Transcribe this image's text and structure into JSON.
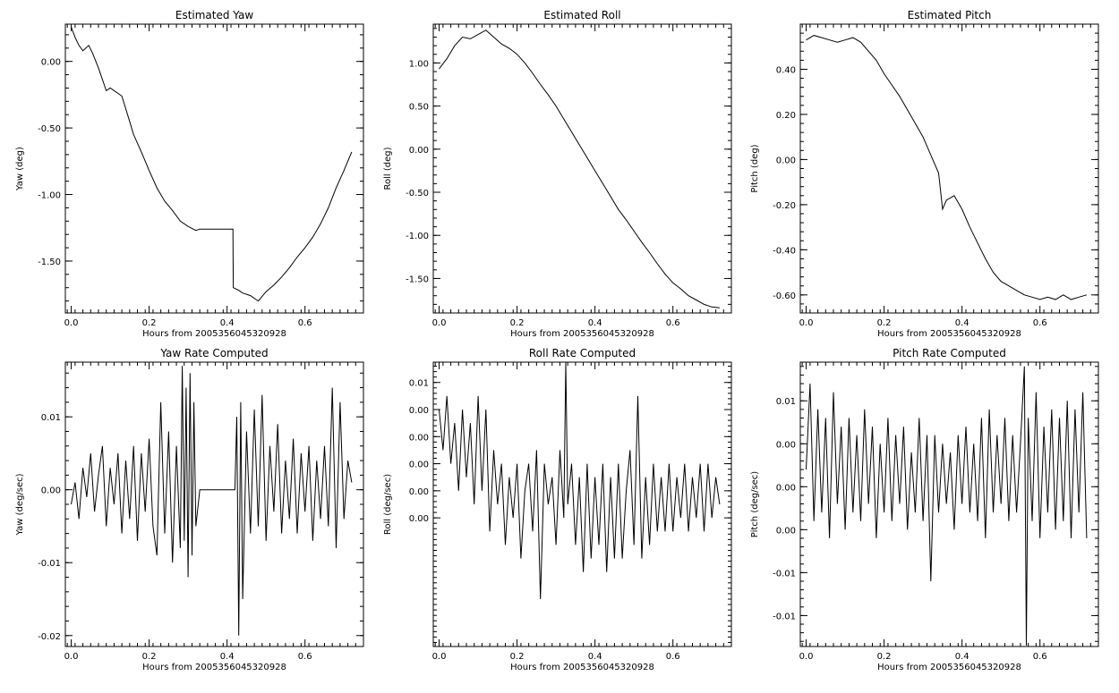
{
  "chart_data": [
    {
      "type": "line",
      "title": "Estimated Yaw",
      "xlabel": "Hours from 2005356045320928",
      "ylabel": "Yaw (deg)",
      "xlim": [
        -0.015,
        0.75
      ],
      "ylim": [
        -1.89,
        0.28
      ],
      "xticks": [
        0.0,
        0.2,
        0.4,
        0.6
      ],
      "xtick_labels": [
        "0.0",
        "0.2",
        "0.4",
        "0.6"
      ],
      "yticks": [
        0.0,
        -0.5,
        -1.0,
        -1.5
      ],
      "ytick_labels": [
        "0.00",
        "-0.50",
        "-1.00",
        "-1.50"
      ],
      "series": [
        {
          "x": [
            0.0,
            0.01,
            0.02,
            0.03,
            0.045,
            0.055,
            0.07,
            0.09,
            0.1,
            0.12,
            0.13,
            0.15,
            0.16,
            0.18,
            0.2,
            0.22,
            0.24,
            0.26,
            0.28,
            0.3,
            0.32,
            0.33,
            0.36,
            0.39,
            0.415,
            0.416,
            0.43,
            0.44,
            0.46,
            0.48,
            0.5,
            0.52,
            0.54,
            0.56,
            0.58,
            0.6,
            0.62,
            0.64,
            0.66,
            0.68,
            0.7,
            0.72
          ],
          "y": [
            0.26,
            0.18,
            0.12,
            0.08,
            0.12,
            0.06,
            -0.05,
            -0.22,
            -0.2,
            -0.24,
            -0.26,
            -0.45,
            -0.55,
            -0.68,
            -0.82,
            -0.95,
            -1.05,
            -1.12,
            -1.2,
            -1.24,
            -1.27,
            -1.26,
            -1.26,
            -1.26,
            -1.26,
            -1.7,
            -1.72,
            -1.74,
            -1.76,
            -1.8,
            -1.73,
            -1.68,
            -1.62,
            -1.55,
            -1.47,
            -1.4,
            -1.32,
            -1.22,
            -1.1,
            -0.95,
            -0.82,
            -0.68
          ]
        }
      ]
    },
    {
      "type": "line",
      "title": "Estimated Roll",
      "xlabel": "Hours from 2005356045320928",
      "ylabel": "Roll (deg)",
      "xlim": [
        -0.015,
        0.75
      ],
      "ylim": [
        -1.9,
        1.45
      ],
      "xticks": [
        0.0,
        0.2,
        0.4,
        0.6
      ],
      "xtick_labels": [
        "0.0",
        "0.2",
        "0.4",
        "0.6"
      ],
      "yticks": [
        1.0,
        0.5,
        0.0,
        -0.5,
        -1.0,
        -1.5
      ],
      "ytick_labels": [
        "1.00",
        "0.50",
        "0.00",
        "-0.50",
        "-1.00",
        "-1.50"
      ],
      "series": [
        {
          "x": [
            0.0,
            0.02,
            0.04,
            0.06,
            0.08,
            0.1,
            0.12,
            0.14,
            0.16,
            0.18,
            0.2,
            0.22,
            0.24,
            0.26,
            0.28,
            0.3,
            0.32,
            0.34,
            0.36,
            0.38,
            0.4,
            0.42,
            0.44,
            0.46,
            0.48,
            0.5,
            0.52,
            0.54,
            0.56,
            0.58,
            0.6,
            0.62,
            0.64,
            0.66,
            0.68,
            0.7,
            0.72
          ],
          "y": [
            0.93,
            1.05,
            1.2,
            1.3,
            1.28,
            1.33,
            1.38,
            1.3,
            1.22,
            1.17,
            1.1,
            1.0,
            0.88,
            0.75,
            0.63,
            0.5,
            0.35,
            0.2,
            0.05,
            -0.1,
            -0.25,
            -0.4,
            -0.55,
            -0.7,
            -0.82,
            -0.95,
            -1.08,
            -1.2,
            -1.33,
            -1.45,
            -1.55,
            -1.62,
            -1.7,
            -1.75,
            -1.8,
            -1.83,
            -1.84
          ]
        }
      ]
    },
    {
      "type": "line",
      "title": "Estimated Pitch",
      "xlabel": "Hours from 2005356045320928",
      "ylabel": "Pitch (deg)",
      "xlim": [
        -0.015,
        0.75
      ],
      "ylim": [
        -0.68,
        0.6
      ],
      "xticks": [
        0.0,
        0.2,
        0.4,
        0.6
      ],
      "xtick_labels": [
        "0.0",
        "0.2",
        "0.4",
        "0.6"
      ],
      "yticks": [
        0.4,
        0.2,
        0.0,
        -0.2,
        -0.4,
        -0.6
      ],
      "ytick_labels": [
        "0.40",
        "0.20",
        "0.00",
        "-0.20",
        "-0.40",
        "-0.60"
      ],
      "series": [
        {
          "x": [
            0.0,
            0.02,
            0.04,
            0.06,
            0.08,
            0.1,
            0.12,
            0.14,
            0.16,
            0.18,
            0.2,
            0.22,
            0.24,
            0.26,
            0.28,
            0.3,
            0.32,
            0.34,
            0.35,
            0.36,
            0.38,
            0.4,
            0.42,
            0.44,
            0.46,
            0.48,
            0.5,
            0.52,
            0.54,
            0.56,
            0.58,
            0.6,
            0.62,
            0.64,
            0.66,
            0.68,
            0.7,
            0.72
          ],
          "y": [
            0.53,
            0.55,
            0.54,
            0.53,
            0.52,
            0.53,
            0.54,
            0.52,
            0.48,
            0.44,
            0.38,
            0.33,
            0.28,
            0.22,
            0.16,
            0.1,
            0.02,
            -0.06,
            -0.22,
            -0.18,
            -0.16,
            -0.22,
            -0.3,
            -0.37,
            -0.44,
            -0.5,
            -0.54,
            -0.56,
            -0.58,
            -0.6,
            -0.61,
            -0.62,
            -0.61,
            -0.62,
            -0.6,
            -0.62,
            -0.61,
            -0.6
          ]
        }
      ]
    },
    {
      "type": "line",
      "title": "Yaw Rate Computed",
      "xlabel": "Hours from 2005356045320928",
      "ylabel": "Yaw (deg/sec)",
      "xlim": [
        -0.015,
        0.75
      ],
      "ylim": [
        -0.0215,
        0.0175
      ],
      "xticks": [
        0.0,
        0.2,
        0.4,
        0.6
      ],
      "xtick_labels": [
        "0.0",
        "0.2",
        "0.4",
        "0.6"
      ],
      "yticks": [
        0.01,
        0.0,
        -0.01,
        -0.02
      ],
      "ytick_labels": [
        "0.01",
        "0.00",
        "-0.01",
        "-0.02"
      ],
      "series": [
        {
          "x": [
            0.0,
            0.01,
            0.02,
            0.03,
            0.04,
            0.05,
            0.06,
            0.07,
            0.08,
            0.09,
            0.1,
            0.11,
            0.12,
            0.13,
            0.14,
            0.15,
            0.16,
            0.17,
            0.18,
            0.19,
            0.2,
            0.21,
            0.22,
            0.23,
            0.24,
            0.25,
            0.26,
            0.27,
            0.28,
            0.285,
            0.29,
            0.295,
            0.3,
            0.305,
            0.31,
            0.315,
            0.32,
            0.33,
            0.42,
            0.425,
            0.43,
            0.435,
            0.44,
            0.45,
            0.46,
            0.47,
            0.48,
            0.49,
            0.5,
            0.51,
            0.52,
            0.53,
            0.54,
            0.55,
            0.56,
            0.57,
            0.58,
            0.59,
            0.6,
            0.61,
            0.62,
            0.63,
            0.64,
            0.65,
            0.66,
            0.67,
            0.68,
            0.69,
            0.7,
            0.71,
            0.72
          ],
          "y": [
            -0.002,
            0.001,
            -0.004,
            0.003,
            -0.001,
            0.005,
            -0.003,
            0.002,
            0.006,
            -0.005,
            0.003,
            -0.002,
            0.005,
            -0.006,
            0.004,
            -0.004,
            0.006,
            -0.007,
            0.005,
            -0.003,
            0.007,
            -0.005,
            -0.009,
            0.012,
            -0.006,
            0.008,
            -0.01,
            0.006,
            -0.008,
            0.017,
            -0.007,
            0.014,
            -0.012,
            0.016,
            -0.009,
            0.012,
            -0.005,
            0.0,
            0.0,
            0.01,
            -0.02,
            0.012,
            -0.015,
            0.008,
            -0.006,
            0.011,
            -0.005,
            0.013,
            -0.007,
            0.006,
            -0.003,
            0.009,
            -0.006,
            0.004,
            -0.004,
            0.007,
            -0.006,
            0.005,
            -0.003,
            0.006,
            -0.007,
            0.004,
            -0.004,
            0.006,
            -0.005,
            0.014,
            -0.008,
            0.012,
            -0.004,
            0.004,
            0.001
          ]
        }
      ]
    },
    {
      "type": "line",
      "title": "Roll Rate Computed",
      "xlabel": "Hours from 2005356045320928",
      "ylabel": "Roll (deg/sec)",
      "xlim": [
        -0.015,
        0.75
      ],
      "ylim": [
        -0.0095,
        0.0115
      ],
      "xticks": [
        0.0,
        0.2,
        0.4,
        0.6
      ],
      "xtick_labels": [
        "0.0",
        "0.2",
        "0.4",
        "0.6"
      ],
      "yticks": [
        0.01,
        0.008,
        0.006,
        0.004,
        0.002,
        0.0
      ],
      "ytick_labels": [
        "0.01",
        "0.00",
        "0.00",
        "0.00",
        "0.00",
        "0.00"
      ],
      "series": [
        {
          "x": [
            0.0,
            0.01,
            0.02,
            0.03,
            0.04,
            0.05,
            0.06,
            0.07,
            0.08,
            0.09,
            0.1,
            0.11,
            0.12,
            0.13,
            0.14,
            0.15,
            0.16,
            0.17,
            0.18,
            0.19,
            0.2,
            0.21,
            0.22,
            0.23,
            0.24,
            0.25,
            0.26,
            0.27,
            0.28,
            0.29,
            0.3,
            0.31,
            0.32,
            0.325,
            0.33,
            0.34,
            0.35,
            0.36,
            0.37,
            0.38,
            0.39,
            0.4,
            0.41,
            0.42,
            0.43,
            0.44,
            0.45,
            0.46,
            0.47,
            0.48,
            0.49,
            0.5,
            0.51,
            0.52,
            0.53,
            0.54,
            0.55,
            0.56,
            0.57,
            0.58,
            0.59,
            0.6,
            0.61,
            0.62,
            0.63,
            0.64,
            0.65,
            0.66,
            0.67,
            0.68,
            0.69,
            0.7,
            0.71,
            0.72
          ],
          "y": [
            0.008,
            0.005,
            0.009,
            0.004,
            0.007,
            0.002,
            0.008,
            0.003,
            0.007,
            0.001,
            0.009,
            0.002,
            0.008,
            -0.001,
            0.005,
            0.001,
            0.004,
            -0.002,
            0.003,
            0.0,
            0.004,
            -0.003,
            0.002,
            0.004,
            -0.001,
            0.005,
            -0.006,
            0.004,
            0.001,
            0.003,
            -0.002,
            0.005,
            0.0,
            0.0115,
            0.001,
            0.004,
            -0.002,
            0.003,
            -0.004,
            0.004,
            -0.003,
            0.003,
            -0.002,
            0.004,
            -0.004,
            0.003,
            -0.003,
            0.004,
            -0.003,
            0.002,
            0.005,
            -0.002,
            0.009,
            -0.003,
            0.003,
            -0.002,
            0.004,
            -0.001,
            0.003,
            -0.001,
            0.004,
            -0.001,
            0.003,
            0.0,
            0.004,
            -0.001,
            0.003,
            0.0,
            0.004,
            -0.001,
            0.004,
            0.0,
            0.003,
            0.001
          ]
        }
      ]
    },
    {
      "type": "line",
      "title": "Pitch Rate Computed",
      "xlabel": "Hours from 2005356045320928",
      "ylabel": "Pitch (deg/sec)",
      "xlim": [
        -0.015,
        0.75
      ],
      "ylim": [
        -0.0186,
        0.0145
      ],
      "xticks": [
        0.0,
        0.2,
        0.4,
        0.6
      ],
      "xtick_labels": [
        "0.0",
        "0.2",
        "0.4",
        "0.6"
      ],
      "yticks": [
        0.01,
        0.005,
        0.0,
        -0.005,
        -0.01,
        -0.015
      ],
      "ytick_labels": [
        "0.01",
        "0.00",
        "0.00",
        "0.00",
        "-0.01",
        "-0.01"
      ],
      "series": [
        {
          "x": [
            0.0,
            0.01,
            0.02,
            0.03,
            0.04,
            0.05,
            0.06,
            0.07,
            0.08,
            0.09,
            0.1,
            0.11,
            0.12,
            0.13,
            0.14,
            0.15,
            0.16,
            0.17,
            0.18,
            0.19,
            0.2,
            0.21,
            0.22,
            0.23,
            0.24,
            0.25,
            0.26,
            0.27,
            0.28,
            0.29,
            0.3,
            0.31,
            0.32,
            0.33,
            0.34,
            0.35,
            0.36,
            0.37,
            0.38,
            0.39,
            0.4,
            0.41,
            0.42,
            0.43,
            0.44,
            0.45,
            0.46,
            0.47,
            0.48,
            0.49,
            0.5,
            0.51,
            0.52,
            0.53,
            0.54,
            0.55,
            0.56,
            0.565,
            0.57,
            0.58,
            0.59,
            0.6,
            0.61,
            0.62,
            0.63,
            0.64,
            0.65,
            0.66,
            0.67,
            0.68,
            0.69,
            0.7,
            0.71,
            0.72
          ],
          "y": [
            0.002,
            0.012,
            -0.004,
            0.009,
            -0.003,
            0.008,
            -0.006,
            0.011,
            -0.002,
            0.007,
            -0.005,
            0.008,
            -0.003,
            0.006,
            -0.004,
            0.009,
            -0.002,
            0.007,
            -0.006,
            0.005,
            -0.003,
            0.008,
            -0.004,
            0.006,
            -0.002,
            0.007,
            -0.005,
            0.004,
            -0.003,
            0.008,
            -0.004,
            0.006,
            -0.011,
            0.006,
            -0.003,
            0.005,
            -0.002,
            0.004,
            -0.005,
            0.006,
            -0.002,
            0.007,
            -0.003,
            0.005,
            -0.004,
            0.008,
            -0.006,
            0.009,
            -0.003,
            0.006,
            -0.002,
            0.008,
            -0.004,
            0.006,
            -0.003,
            0.005,
            0.014,
            -0.0185,
            0.008,
            -0.004,
            0.011,
            -0.006,
            0.007,
            -0.003,
            0.009,
            -0.005,
            0.008,
            -0.004,
            0.01,
            -0.006,
            0.009,
            -0.003,
            0.011,
            -0.006
          ]
        }
      ]
    }
  ]
}
